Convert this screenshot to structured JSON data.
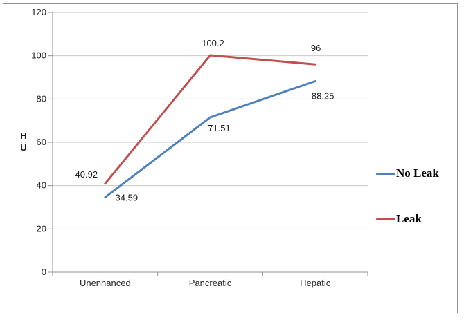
{
  "chart_data": {
    "type": "line",
    "title": "",
    "categories": [
      "Unenhanced",
      "Pancreatic",
      "Hepatic"
    ],
    "series": [
      {
        "name": "No Leak",
        "color": "#4F81BD",
        "values": [
          34.59,
          71.51,
          88.25
        ],
        "data_labels": [
          "34.59",
          "71.51",
          "88.25"
        ]
      },
      {
        "name": "Leak",
        "color": "#C0504D",
        "values": [
          40.92,
          100.2,
          96
        ],
        "data_labels": [
          "40.92",
          "100.2",
          "96"
        ]
      }
    ],
    "xlabel": "",
    "ylabel_lines": [
      "H",
      "U"
    ],
    "yticks": [
      0,
      20,
      40,
      60,
      80,
      100,
      120
    ],
    "ylim": [
      0,
      120
    ],
    "grid": true,
    "legend_position": "right",
    "colors": {
      "gridline": "#c9c9c9",
      "axis": "#8f8f8f",
      "frame_border": "#919191",
      "tick_label": "#262626",
      "data_label": "#1a1a1a",
      "legend_text": "#000000"
    }
  }
}
